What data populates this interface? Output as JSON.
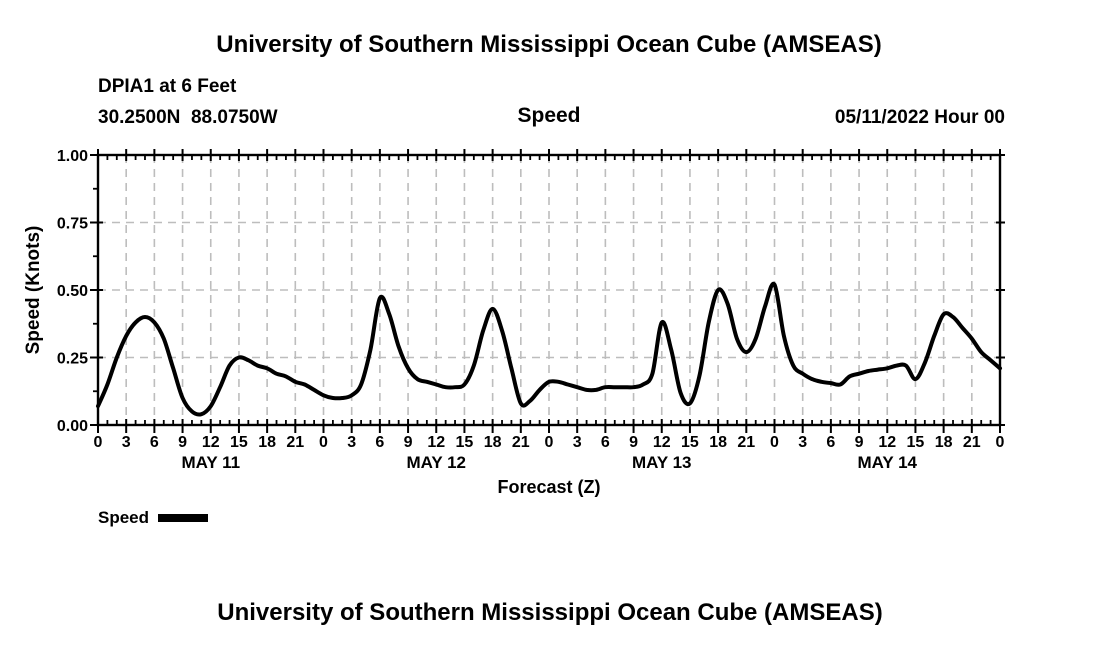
{
  "header": {
    "title": "University of Southern Mississippi Ocean Cube (AMSEAS)",
    "station": "DPIA1 at 6 Feet",
    "coordinates": "30.2500N  88.0750W",
    "panel_title": "Speed",
    "run_date": "05/11/2022 Hour 00"
  },
  "legend": {
    "label": "Speed",
    "swatch_color": "#000000"
  },
  "footer": {
    "title": "University of Southern Mississippi Ocean Cube (AMSEAS)"
  },
  "colors": {
    "line": "#000000",
    "grid": "#bdbdbd",
    "frame": "#000000",
    "text": "#000000",
    "background": "#ffffff"
  },
  "chart_data": {
    "type": "line",
    "title": "Speed",
    "xlabel": "Forecast (Z)",
    "ylabel": "Speed (Knots)",
    "ylim": [
      0,
      1
    ],
    "grid": true,
    "legend_position": "bottom-left",
    "yticks": {
      "values": [
        0,
        0.25,
        0.5,
        0.75,
        1
      ],
      "labels": [
        "0.00",
        "0.25",
        "0.50",
        "0.75",
        "1.00"
      ]
    },
    "x_hours_start": 0,
    "x_hours_end": 96,
    "xtick_step_hours": 3,
    "xtick_labels": [
      "0",
      "3",
      "6",
      "9",
      "12",
      "15",
      "18",
      "21",
      "0",
      "3",
      "6",
      "9",
      "12",
      "15",
      "18",
      "21",
      "0",
      "3",
      "6",
      "9",
      "12",
      "15",
      "18",
      "21",
      "0",
      "3",
      "6",
      "9",
      "12",
      "15",
      "18",
      "21",
      "0"
    ],
    "day_labels": [
      {
        "label": "MAY 11",
        "center_hour": 12
      },
      {
        "label": "MAY 12",
        "center_hour": 36
      },
      {
        "label": "MAY 13",
        "center_hour": 60
      },
      {
        "label": "MAY 14",
        "center_hour": 84
      }
    ],
    "series": [
      {
        "name": "Speed",
        "color": "#000000",
        "x_start_hour": 0,
        "x_step_hours": 1,
        "values": [
          0.07,
          0.15,
          0.25,
          0.33,
          0.38,
          0.4,
          0.38,
          0.32,
          0.21,
          0.1,
          0.05,
          0.04,
          0.07,
          0.14,
          0.22,
          0.25,
          0.24,
          0.22,
          0.21,
          0.19,
          0.18,
          0.16,
          0.15,
          0.13,
          0.11,
          0.1,
          0.1,
          0.11,
          0.15,
          0.28,
          0.47,
          0.41,
          0.29,
          0.21,
          0.17,
          0.16,
          0.15,
          0.14,
          0.14,
          0.15,
          0.22,
          0.35,
          0.43,
          0.35,
          0.21,
          0.08,
          0.09,
          0.13,
          0.16,
          0.16,
          0.15,
          0.14,
          0.13,
          0.13,
          0.14,
          0.14,
          0.14,
          0.14,
          0.15,
          0.19,
          0.38,
          0.28,
          0.12,
          0.08,
          0.18,
          0.38,
          0.5,
          0.45,
          0.32,
          0.27,
          0.32,
          0.44,
          0.52,
          0.33,
          0.22,
          0.19,
          0.17,
          0.16,
          0.155,
          0.15,
          0.18,
          0.19,
          0.2,
          0.205,
          0.21,
          0.22,
          0.22,
          0.17,
          0.23,
          0.33,
          0.41,
          0.4,
          0.36,
          0.32,
          0.27,
          0.24,
          0.21
        ]
      }
    ]
  }
}
